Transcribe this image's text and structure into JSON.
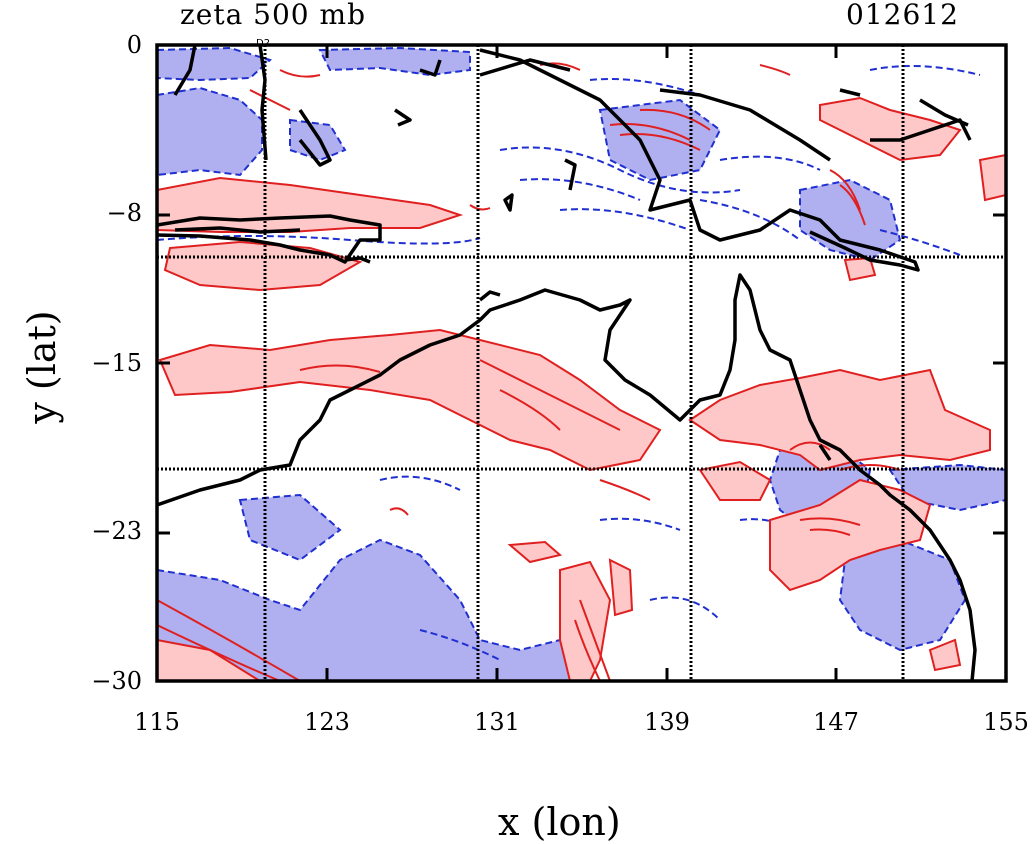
{
  "title": "zeta 500 mb",
  "timestamp": "012612",
  "xlabel": "x (lon)",
  "ylabel": "y (lat)",
  "xticks": [
    "115",
    "123",
    "131",
    "139",
    "147",
    "155"
  ],
  "yticks": [
    "0",
    "−8",
    "−15",
    "−23",
    "−30"
  ],
  "station_marker": "D2",
  "colors": {
    "positive_fill": "#ffc8c8",
    "positive_line": "#e02020",
    "negative_fill": "#b0b0f0",
    "negative_line": "#2030d0",
    "coastline": "#000000",
    "grid": "#000000"
  },
  "chart_data": {
    "type": "heatmap",
    "xlim": [
      115,
      155
    ],
    "ylim": [
      -30,
      0
    ],
    "grid_lon": [
      120,
      130,
      140,
      150
    ],
    "grid_lat": [
      -10,
      -20
    ],
    "legend": "none"
  }
}
